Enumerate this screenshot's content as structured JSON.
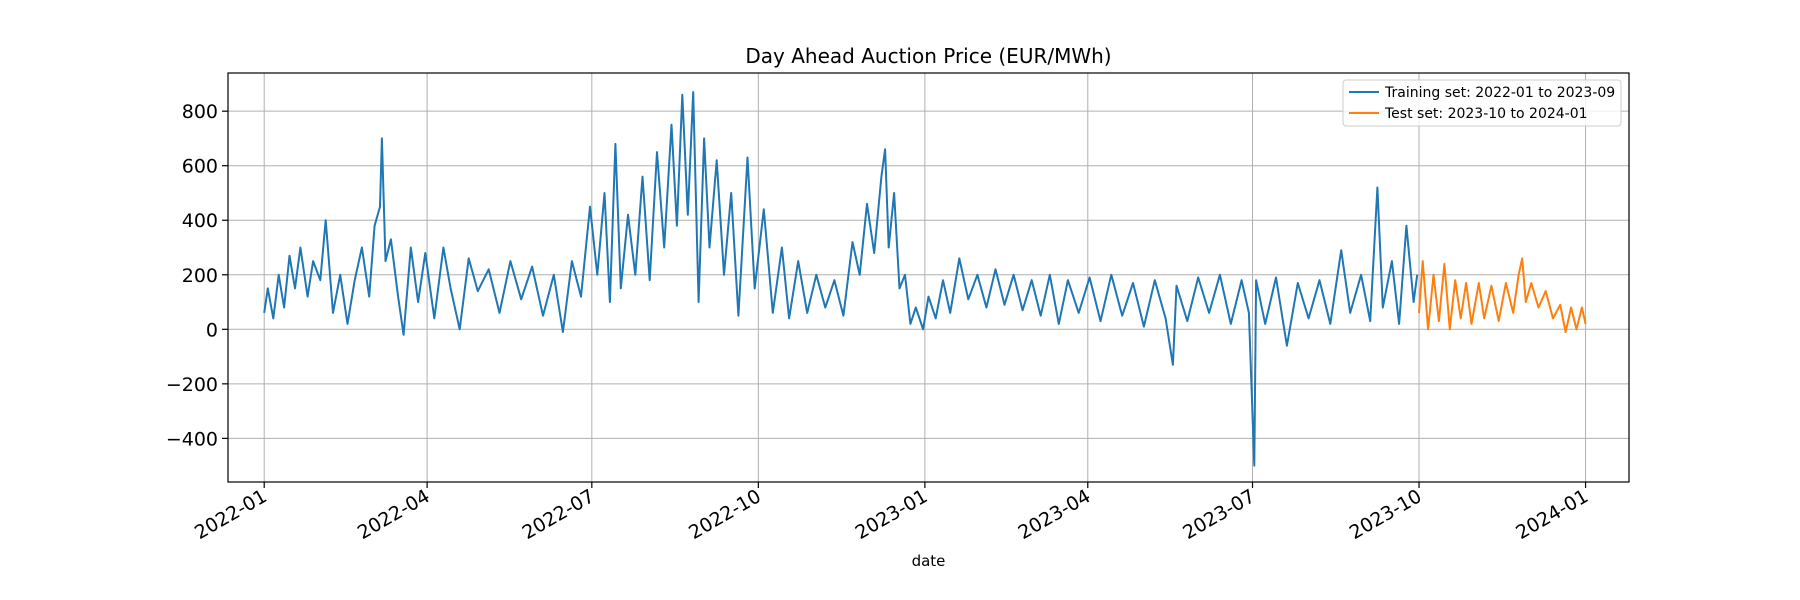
{
  "chart_data": {
    "type": "line",
    "title": "Day Ahead Auction Price (EUR/MWh)",
    "xlabel": "date",
    "ylabel": "",
    "grid": true,
    "legend_position": "top-right",
    "xlim": [
      "2021-12-12",
      "2024-01-25"
    ],
    "ylim": [
      -560,
      940
    ],
    "x_ticks": [
      "2022-01",
      "2022-04",
      "2022-07",
      "2022-10",
      "2023-01",
      "2023-04",
      "2023-07",
      "2023-10",
      "2024-01"
    ],
    "y_ticks": [
      "800",
      "600",
      "400",
      "200",
      "0",
      "−200",
      "−400"
    ],
    "y_tick_values": [
      800,
      600,
      400,
      200,
      0,
      -200,
      -400
    ],
    "series": [
      {
        "name": "Training set: 2022-01 to 2023-09",
        "color": "#1f77b4",
        "points": [
          [
            "2022-01-01",
            60
          ],
          [
            "2022-01-03",
            150
          ],
          [
            "2022-01-06",
            40
          ],
          [
            "2022-01-09",
            200
          ],
          [
            "2022-01-12",
            80
          ],
          [
            "2022-01-15",
            270
          ],
          [
            "2022-01-18",
            150
          ],
          [
            "2022-01-21",
            300
          ],
          [
            "2022-01-25",
            120
          ],
          [
            "2022-01-28",
            250
          ],
          [
            "2022-02-01",
            180
          ],
          [
            "2022-02-04",
            400
          ],
          [
            "2022-02-08",
            60
          ],
          [
            "2022-02-12",
            200
          ],
          [
            "2022-02-16",
            20
          ],
          [
            "2022-02-20",
            180
          ],
          [
            "2022-02-24",
            300
          ],
          [
            "2022-02-28",
            120
          ],
          [
            "2022-03-03",
            380
          ],
          [
            "2022-03-06",
            450
          ],
          [
            "2022-03-07",
            700
          ],
          [
            "2022-03-09",
            250
          ],
          [
            "2022-03-12",
            330
          ],
          [
            "2022-03-16",
            120
          ],
          [
            "2022-03-19",
            -20
          ],
          [
            "2022-03-23",
            300
          ],
          [
            "2022-03-27",
            100
          ],
          [
            "2022-03-31",
            280
          ],
          [
            "2022-04-05",
            40
          ],
          [
            "2022-04-10",
            300
          ],
          [
            "2022-04-14",
            150
          ],
          [
            "2022-04-19",
            0
          ],
          [
            "2022-04-24",
            260
          ],
          [
            "2022-04-29",
            140
          ],
          [
            "2022-05-05",
            220
          ],
          [
            "2022-05-11",
            60
          ],
          [
            "2022-05-17",
            250
          ],
          [
            "2022-05-23",
            110
          ],
          [
            "2022-05-29",
            230
          ],
          [
            "2022-06-04",
            50
          ],
          [
            "2022-06-10",
            200
          ],
          [
            "2022-06-15",
            -10
          ],
          [
            "2022-06-20",
            250
          ],
          [
            "2022-06-25",
            120
          ],
          [
            "2022-06-30",
            450
          ],
          [
            "2022-07-04",
            200
          ],
          [
            "2022-07-08",
            500
          ],
          [
            "2022-07-11",
            100
          ],
          [
            "2022-07-14",
            680
          ],
          [
            "2022-07-17",
            150
          ],
          [
            "2022-07-21",
            420
          ],
          [
            "2022-07-25",
            200
          ],
          [
            "2022-07-29",
            560
          ],
          [
            "2022-08-02",
            180
          ],
          [
            "2022-08-06",
            650
          ],
          [
            "2022-08-10",
            300
          ],
          [
            "2022-08-14",
            750
          ],
          [
            "2022-08-17",
            380
          ],
          [
            "2022-08-20",
            860
          ],
          [
            "2022-08-23",
            420
          ],
          [
            "2022-08-26",
            870
          ],
          [
            "2022-08-29",
            100
          ],
          [
            "2022-09-01",
            700
          ],
          [
            "2022-09-04",
            300
          ],
          [
            "2022-09-08",
            620
          ],
          [
            "2022-09-12",
            200
          ],
          [
            "2022-09-16",
            500
          ],
          [
            "2022-09-20",
            50
          ],
          [
            "2022-09-25",
            630
          ],
          [
            "2022-09-29",
            150
          ],
          [
            "2022-10-04",
            440
          ],
          [
            "2022-10-09",
            60
          ],
          [
            "2022-10-14",
            300
          ],
          [
            "2022-10-18",
            40
          ],
          [
            "2022-10-23",
            250
          ],
          [
            "2022-10-28",
            60
          ],
          [
            "2022-11-02",
            200
          ],
          [
            "2022-11-07",
            80
          ],
          [
            "2022-11-12",
            180
          ],
          [
            "2022-11-17",
            50
          ],
          [
            "2022-11-22",
            320
          ],
          [
            "2022-11-26",
            200
          ],
          [
            "2022-11-30",
            460
          ],
          [
            "2022-12-04",
            280
          ],
          [
            "2022-12-08",
            560
          ],
          [
            "2022-12-10",
            660
          ],
          [
            "2022-12-12",
            300
          ],
          [
            "2022-12-15",
            500
          ],
          [
            "2022-12-18",
            150
          ],
          [
            "2022-12-21",
            200
          ],
          [
            "2022-12-24",
            20
          ],
          [
            "2022-12-27",
            80
          ],
          [
            "2022-12-31",
            0
          ],
          [
            "2023-01-03",
            120
          ],
          [
            "2023-01-07",
            40
          ],
          [
            "2023-01-11",
            180
          ],
          [
            "2023-01-15",
            60
          ],
          [
            "2023-01-20",
            260
          ],
          [
            "2023-01-25",
            110
          ],
          [
            "2023-01-30",
            200
          ],
          [
            "2023-02-04",
            80
          ],
          [
            "2023-02-09",
            220
          ],
          [
            "2023-02-14",
            90
          ],
          [
            "2023-02-19",
            200
          ],
          [
            "2023-02-24",
            70
          ],
          [
            "2023-03-01",
            180
          ],
          [
            "2023-03-06",
            50
          ],
          [
            "2023-03-11",
            200
          ],
          [
            "2023-03-16",
            20
          ],
          [
            "2023-03-21",
            180
          ],
          [
            "2023-03-27",
            60
          ],
          [
            "2023-04-02",
            190
          ],
          [
            "2023-04-08",
            30
          ],
          [
            "2023-04-14",
            200
          ],
          [
            "2023-04-20",
            50
          ],
          [
            "2023-04-26",
            170
          ],
          [
            "2023-05-02",
            10
          ],
          [
            "2023-05-08",
            180
          ],
          [
            "2023-05-14",
            40
          ],
          [
            "2023-05-18",
            -130
          ],
          [
            "2023-05-20",
            160
          ],
          [
            "2023-05-26",
            30
          ],
          [
            "2023-06-01",
            190
          ],
          [
            "2023-06-07",
            60
          ],
          [
            "2023-06-13",
            200
          ],
          [
            "2023-06-19",
            20
          ],
          [
            "2023-06-25",
            180
          ],
          [
            "2023-06-29",
            60
          ],
          [
            "2023-07-02",
            -500
          ],
          [
            "2023-07-03",
            180
          ],
          [
            "2023-07-08",
            20
          ],
          [
            "2023-07-14",
            190
          ],
          [
            "2023-07-20",
            -60
          ],
          [
            "2023-07-26",
            170
          ],
          [
            "2023-08-01",
            40
          ],
          [
            "2023-08-07",
            180
          ],
          [
            "2023-08-13",
            20
          ],
          [
            "2023-08-19",
            290
          ],
          [
            "2023-08-24",
            60
          ],
          [
            "2023-08-30",
            200
          ],
          [
            "2023-09-04",
            30
          ],
          [
            "2023-09-08",
            520
          ],
          [
            "2023-09-11",
            80
          ],
          [
            "2023-09-16",
            250
          ],
          [
            "2023-09-20",
            20
          ],
          [
            "2023-09-24",
            380
          ],
          [
            "2023-09-28",
            100
          ],
          [
            "2023-09-30",
            200
          ]
        ]
      },
      {
        "name": "Test set: 2023-10 to 2024-01",
        "color": "#ff7f0e",
        "points": [
          [
            "2023-10-01",
            60
          ],
          [
            "2023-10-03",
            250
          ],
          [
            "2023-10-06",
            0
          ],
          [
            "2023-10-09",
            200
          ],
          [
            "2023-10-12",
            30
          ],
          [
            "2023-10-15",
            240
          ],
          [
            "2023-10-18",
            0
          ],
          [
            "2023-10-21",
            180
          ],
          [
            "2023-10-24",
            40
          ],
          [
            "2023-10-27",
            170
          ],
          [
            "2023-10-30",
            20
          ],
          [
            "2023-11-03",
            170
          ],
          [
            "2023-11-06",
            40
          ],
          [
            "2023-11-10",
            160
          ],
          [
            "2023-11-14",
            30
          ],
          [
            "2023-11-18",
            170
          ],
          [
            "2023-11-22",
            60
          ],
          [
            "2023-11-25",
            200
          ],
          [
            "2023-11-27",
            260
          ],
          [
            "2023-11-29",
            100
          ],
          [
            "2023-12-02",
            170
          ],
          [
            "2023-12-06",
            80
          ],
          [
            "2023-12-10",
            140
          ],
          [
            "2023-12-14",
            40
          ],
          [
            "2023-12-18",
            90
          ],
          [
            "2023-12-21",
            -10
          ],
          [
            "2023-12-24",
            80
          ],
          [
            "2023-12-27",
            0
          ],
          [
            "2023-12-30",
            80
          ],
          [
            "2024-01-01",
            20
          ]
        ]
      }
    ]
  }
}
